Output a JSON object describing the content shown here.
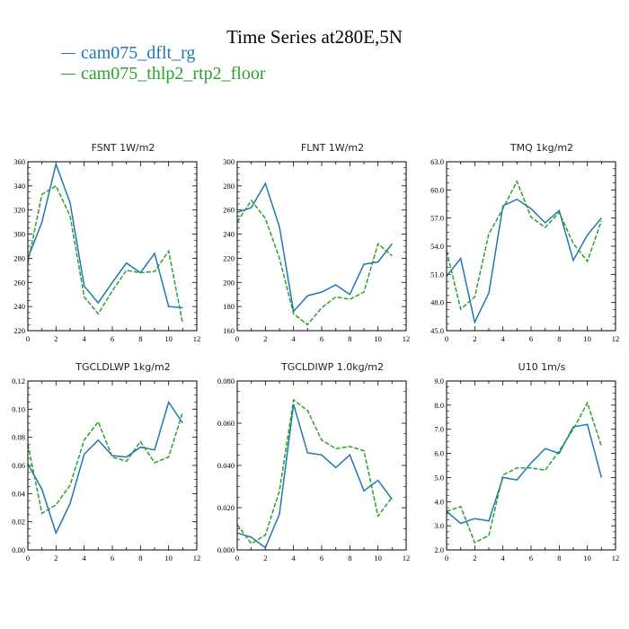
{
  "title": "Time Series at280E,5N",
  "legend": [
    {
      "name": "cam075_dflt_rg",
      "color": "#1f77b4",
      "dash": "none"
    },
    {
      "name": "cam075_thlp2_rtp2_floor",
      "color": "#2ca02c",
      "dash": "5,2"
    }
  ],
  "chart_data": [
    {
      "type": "line",
      "title": "FSNT  1W/m2",
      "x": [
        0,
        1,
        2,
        3,
        4,
        5,
        6,
        7,
        8,
        9,
        10,
        11
      ],
      "xlim": [
        0,
        12
      ],
      "xticks": [
        "0",
        "2",
        "4",
        "6",
        "8",
        "10",
        "12"
      ],
      "ylim": [
        220,
        360
      ],
      "yticks": [
        "220",
        "240",
        "260",
        "280",
        "300",
        "320",
        "340",
        "360"
      ],
      "series": [
        {
          "name": "cam075_dflt_rg",
          "values": [
            280,
            310,
            358,
            326,
            257,
            243,
            260,
            276,
            268,
            284,
            240,
            239
          ]
        },
        {
          "name": "cam075_thlp2_rtp2_floor",
          "values": [
            276,
            333,
            340,
            315,
            248,
            234,
            253,
            270,
            268,
            269,
            286,
            226
          ]
        }
      ]
    },
    {
      "type": "line",
      "title": "FLNT  1W/m2",
      "x": [
        0,
        1,
        2,
        3,
        4,
        5,
        6,
        7,
        8,
        9,
        10,
        11
      ],
      "xlim": [
        0,
        12
      ],
      "xticks": [
        "0",
        "2",
        "4",
        "6",
        "8",
        "10",
        "12"
      ],
      "ylim": [
        160,
        300
      ],
      "yticks": [
        "160",
        "180",
        "200",
        "220",
        "240",
        "260",
        "280",
        "300"
      ],
      "series": [
        {
          "name": "cam075_dflt_rg",
          "values": [
            258,
            262,
            282,
            246,
            176,
            189,
            192,
            198,
            190,
            215,
            217,
            232
          ]
        },
        {
          "name": "cam075_thlp2_rtp2_floor",
          "values": [
            250,
            268,
            253,
            220,
            174,
            165,
            179,
            188,
            186,
            192,
            232,
            222
          ]
        }
      ]
    },
    {
      "type": "line",
      "title": "TMQ  1kg/m2",
      "x": [
        0,
        1,
        2,
        3,
        4,
        5,
        6,
        7,
        8,
        9,
        10,
        11
      ],
      "xlim": [
        0,
        12
      ],
      "xticks": [
        "0",
        "2",
        "4",
        "6",
        "8",
        "10",
        "12"
      ],
      "ylim": [
        45,
        63
      ],
      "yticks": [
        "45.0",
        "48.0",
        "51.0",
        "54.0",
        "57.0",
        "60.0",
        "63.0"
      ],
      "series": [
        {
          "name": "cam075_dflt_rg",
          "values": [
            50.8,
            52.7,
            45.9,
            49.0,
            58.3,
            59.0,
            58.0,
            56.5,
            57.8,
            52.5,
            55.2,
            57.0
          ]
        },
        {
          "name": "cam075_thlp2_rtp2_floor",
          "values": [
            53.5,
            47.3,
            48.6,
            55.3,
            58.0,
            60.9,
            57.1,
            56.0,
            57.6,
            54.3,
            52.4,
            56.7
          ]
        }
      ]
    },
    {
      "type": "line",
      "title": "TGCLDLWP  1kg/m2",
      "x": [
        0,
        1,
        2,
        3,
        4,
        5,
        6,
        7,
        8,
        9,
        10,
        11
      ],
      "xlim": [
        0,
        12
      ],
      "xticks": [
        "0",
        "2",
        "4",
        "6",
        "8",
        "10",
        "12"
      ],
      "ylim": [
        0,
        0.12
      ],
      "yticks": [
        "0.00",
        "0.02",
        "0.04",
        "0.06",
        "0.08",
        "0.10",
        "0.12"
      ],
      "series": [
        {
          "name": "cam075_dflt_rg",
          "values": [
            0.061,
            0.043,
            0.012,
            0.033,
            0.068,
            0.078,
            0.067,
            0.066,
            0.073,
            0.071,
            0.105,
            0.09
          ]
        },
        {
          "name": "cam075_thlp2_rtp2_floor",
          "values": [
            0.075,
            0.026,
            0.032,
            0.046,
            0.078,
            0.091,
            0.066,
            0.063,
            0.077,
            0.062,
            0.066,
            0.098
          ]
        }
      ]
    },
    {
      "type": "line",
      "title": "TGCLDIWP  1.0kg/m2",
      "x": [
        0,
        1,
        2,
        3,
        4,
        5,
        6,
        7,
        8,
        9,
        10,
        11
      ],
      "xlim": [
        0,
        12
      ],
      "xticks": [
        "0",
        "2",
        "4",
        "6",
        "8",
        "10",
        "12"
      ],
      "ylim": [
        0,
        0.08
      ],
      "yticks": [
        "0.000",
        "0.020",
        "0.040",
        "0.060",
        "0.080"
      ],
      "series": [
        {
          "name": "cam075_dflt_rg",
          "values": [
            0.008,
            0.006,
            0.001,
            0.017,
            0.069,
            0.046,
            0.045,
            0.039,
            0.045,
            0.028,
            0.033,
            0.024
          ]
        },
        {
          "name": "cam075_thlp2_rtp2_floor",
          "values": [
            0.012,
            0.003,
            0.007,
            0.028,
            0.071,
            0.066,
            0.052,
            0.048,
            0.049,
            0.047,
            0.016,
            0.025
          ]
        }
      ]
    },
    {
      "type": "line",
      "title": "U10  1m/s",
      "x": [
        0,
        1,
        2,
        3,
        4,
        5,
        6,
        7,
        8,
        9,
        10,
        11
      ],
      "xlim": [
        0,
        12
      ],
      "xticks": [
        "0",
        "2",
        "4",
        "6",
        "8",
        "10",
        "12"
      ],
      "ylim": [
        2,
        9
      ],
      "yticks": [
        "2.0",
        "3.0",
        "4.0",
        "5.0",
        "6.0",
        "7.0",
        "8.0",
        "9.0"
      ],
      "series": [
        {
          "name": "cam075_dflt_rg",
          "values": [
            3.6,
            3.1,
            3.3,
            3.2,
            5.0,
            4.9,
            5.6,
            6.2,
            6.0,
            7.1,
            7.2,
            5.0
          ]
        },
        {
          "name": "cam075_thlp2_rtp2_floor",
          "values": [
            3.6,
            3.8,
            2.3,
            2.6,
            5.1,
            5.4,
            5.4,
            5.3,
            6.1,
            7.0,
            8.1,
            6.3
          ]
        }
      ]
    }
  ]
}
